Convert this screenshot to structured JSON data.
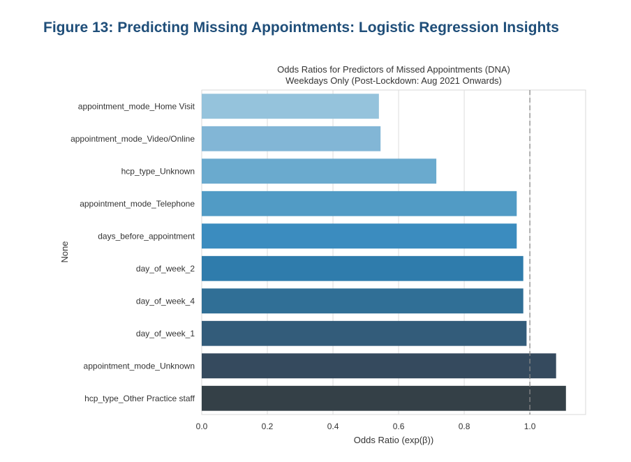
{
  "figure_heading": "Figure 13: Predicting Missing Appointments: Logistic Regression Insights",
  "chart_data": {
    "type": "bar",
    "orientation": "horizontal",
    "title_line1": "Odds Ratios for Predictors of Missed Appointments (DNA)",
    "title_line2": "Weekdays Only (Post-Lockdown: Aug 2021 Onwards)",
    "xlabel": "Odds Ratio (exp(β))",
    "ylabel": "None",
    "xlim": [
      0.0,
      1.17
    ],
    "xticks": [
      "0.0",
      "0.2",
      "0.4",
      "0.6",
      "0.8",
      "1.0"
    ],
    "grid": true,
    "reference_line": 1.0,
    "categories": [
      "appointment_mode_Home Visit",
      "appointment_mode_Video/Online",
      "hcp_type_Unknown",
      "appointment_mode_Telephone",
      "days_before_appointment",
      "day_of_week_2",
      "day_of_week_4",
      "day_of_week_1",
      "appointment_mode_Unknown",
      "hcp_type_Other Practice staff"
    ],
    "values": [
      0.54,
      0.545,
      0.715,
      0.96,
      0.96,
      0.98,
      0.98,
      0.99,
      1.08,
      1.11
    ],
    "colors": [
      "#95c3dc",
      "#82b6d6",
      "#6aaace",
      "#519bc5",
      "#3b8cbf",
      "#2f7cac",
      "#306f96",
      "#335c7a",
      "#354a5e",
      "#344047"
    ]
  }
}
